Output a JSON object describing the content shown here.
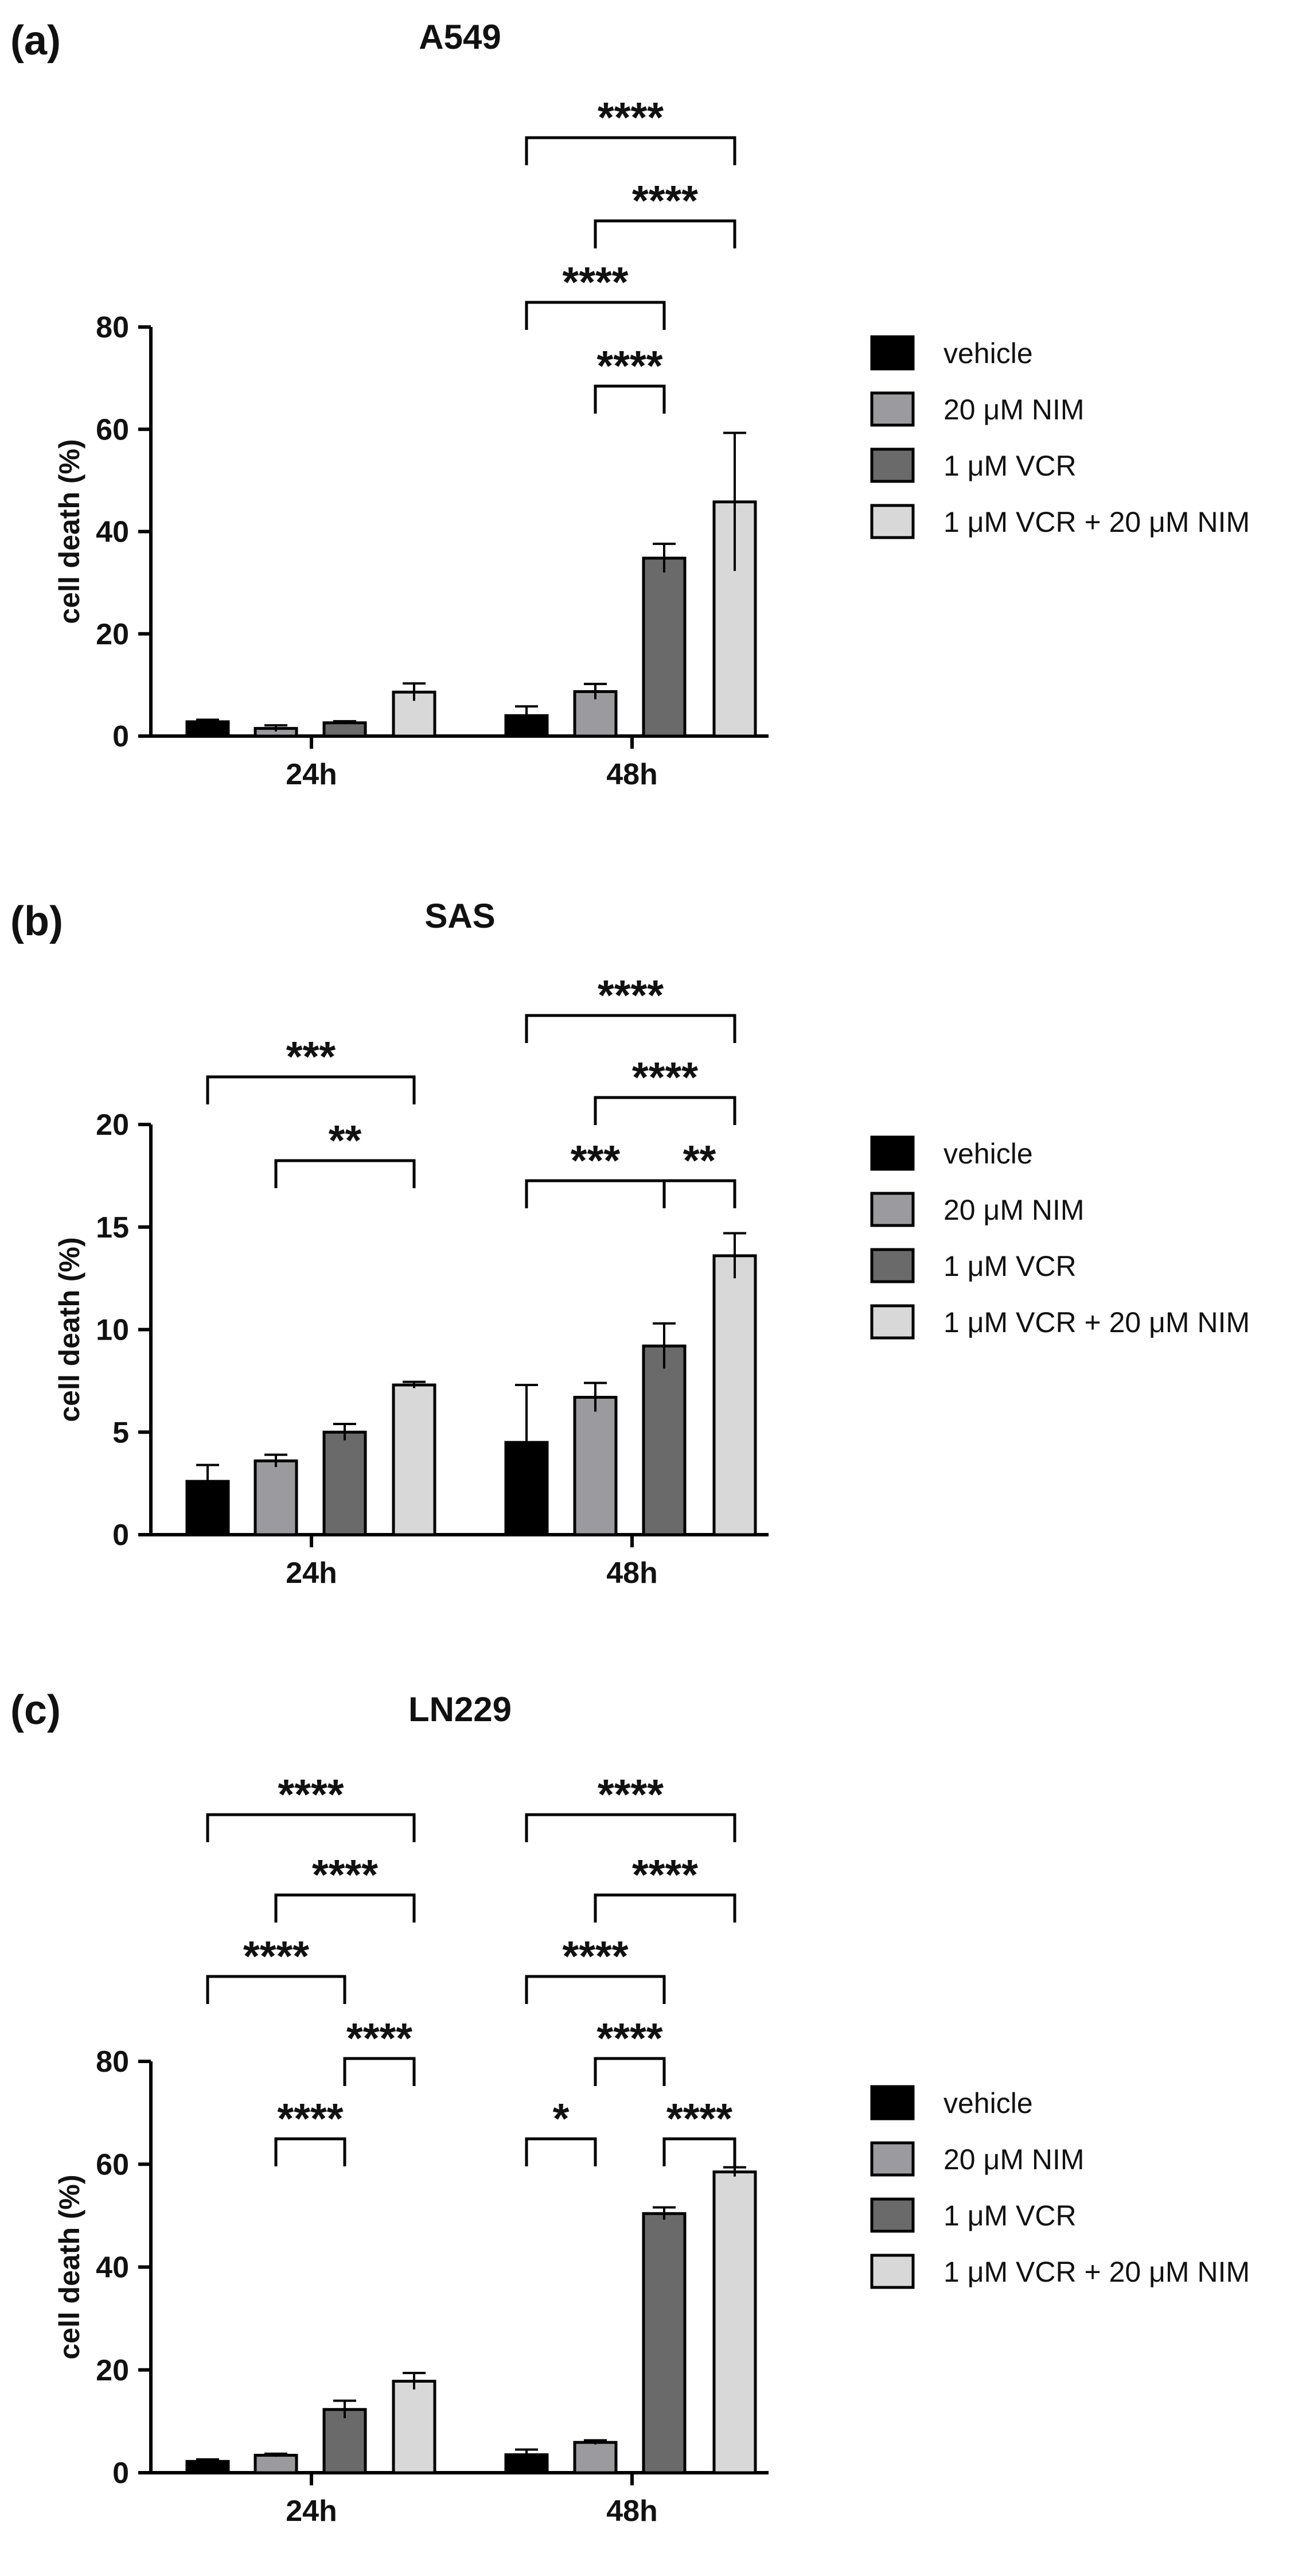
{
  "legend_entries": [
    {
      "label": "vehicle",
      "color": "#000000"
    },
    {
      "label": "20 μM NIM",
      "color": "#9a9a9f"
    },
    {
      "label": "1 μM VCR",
      "color": "#6a6a6a"
    },
    {
      "label": "1 μM VCR + 20 μM NIM",
      "color": "#d8d8d8"
    }
  ],
  "chart_data": [
    {
      "type": "bar",
      "panel_label": "(a)",
      "title": "A549",
      "ylabel": "cell death (%)",
      "ylim": [
        0,
        80
      ],
      "yticks": [
        0,
        20,
        40,
        60,
        80
      ],
      "categories": [
        "24h",
        "48h"
      ],
      "legend_position": "right",
      "series": [
        {
          "name": "vehicle",
          "values": [
            2.8,
            4.0
          ],
          "errors": [
            0.4,
            1.8
          ]
        },
        {
          "name": "20 μM NIM",
          "values": [
            1.5,
            8.7
          ],
          "errors": [
            0.6,
            1.5
          ]
        },
        {
          "name": "1 μM VCR",
          "values": [
            2.6,
            34.8
          ],
          "errors": [
            0.3,
            2.8
          ]
        },
        {
          "name": "1 μM VCR + 20 μM NIM",
          "values": [
            8.6,
            45.8
          ],
          "errors": [
            1.7,
            13.5
          ]
        }
      ],
      "significance": [
        {
          "group": 1,
          "from": 0,
          "to": 3,
          "label": "****"
        },
        {
          "group": 1,
          "from": 1,
          "to": 3,
          "label": "****"
        },
        {
          "group": 1,
          "from": 0,
          "to": 2,
          "label": "****"
        },
        {
          "group": 1,
          "from": 1,
          "to": 2,
          "label": "****"
        }
      ]
    },
    {
      "type": "bar",
      "panel_label": "(b)",
      "title": "SAS",
      "ylabel": "cell death (%)",
      "ylim": [
        0,
        20
      ],
      "yticks": [
        0,
        5,
        10,
        15,
        20
      ],
      "categories": [
        "24h",
        "48h"
      ],
      "legend_position": "right",
      "series": [
        {
          "name": "vehicle",
          "values": [
            2.6,
            4.5
          ],
          "errors": [
            0.8,
            2.8
          ]
        },
        {
          "name": "20 μM NIM",
          "values": [
            3.6,
            6.7
          ],
          "errors": [
            0.3,
            0.7
          ]
        },
        {
          "name": "1 μM VCR",
          "values": [
            5.0,
            9.2
          ],
          "errors": [
            0.4,
            1.1
          ]
        },
        {
          "name": "1 μM VCR + 20 μM NIM",
          "values": [
            7.3,
            13.6
          ],
          "errors": [
            0.15,
            1.1
          ]
        }
      ],
      "significance": [
        {
          "group": 0,
          "from": 0,
          "to": 3,
          "label": "***"
        },
        {
          "group": 0,
          "from": 1,
          "to": 3,
          "label": "**"
        },
        {
          "group": 1,
          "from": 0,
          "to": 3,
          "label": "****"
        },
        {
          "group": 1,
          "from": 1,
          "to": 3,
          "label": "****"
        },
        {
          "group": 1,
          "from": 0,
          "to": 2,
          "label": "***"
        },
        {
          "group": 1,
          "from": 2,
          "to": 3,
          "label": "**"
        }
      ]
    },
    {
      "type": "bar",
      "panel_label": "(c)",
      "title": "LN229",
      "ylabel": "cell death (%)",
      "ylim": [
        0,
        80
      ],
      "yticks": [
        0,
        20,
        40,
        60,
        80
      ],
      "categories": [
        "24h",
        "48h"
      ],
      "legend_position": "right",
      "series": [
        {
          "name": "vehicle",
          "values": [
            2.2,
            3.5
          ],
          "errors": [
            0.4,
            1.0
          ]
        },
        {
          "name": "20 μM NIM",
          "values": [
            3.4,
            5.9
          ],
          "errors": [
            0.3,
            0.4
          ]
        },
        {
          "name": "1 μM VCR",
          "values": [
            12.3,
            50.4
          ],
          "errors": [
            1.7,
            1.2
          ]
        },
        {
          "name": "1 μM VCR + 20 μM NIM",
          "values": [
            17.8,
            58.5
          ],
          "errors": [
            1.6,
            0.9
          ]
        }
      ],
      "significance": [
        {
          "group": 0,
          "from": 0,
          "to": 3,
          "label": "****"
        },
        {
          "group": 0,
          "from": 1,
          "to": 3,
          "label": "****"
        },
        {
          "group": 0,
          "from": 0,
          "to": 2,
          "label": "****"
        },
        {
          "group": 0,
          "from": 2,
          "to": 3,
          "label": "****"
        },
        {
          "group": 0,
          "from": 1,
          "to": 2,
          "label": "****"
        },
        {
          "group": 1,
          "from": 0,
          "to": 3,
          "label": "****"
        },
        {
          "group": 1,
          "from": 1,
          "to": 3,
          "label": "****"
        },
        {
          "group": 1,
          "from": 0,
          "to": 2,
          "label": "****"
        },
        {
          "group": 1,
          "from": 1,
          "to": 2,
          "label": "****"
        },
        {
          "group": 1,
          "from": 0,
          "to": 1,
          "label": "*"
        },
        {
          "group": 1,
          "from": 2,
          "to": 3,
          "label": "****"
        }
      ]
    }
  ]
}
